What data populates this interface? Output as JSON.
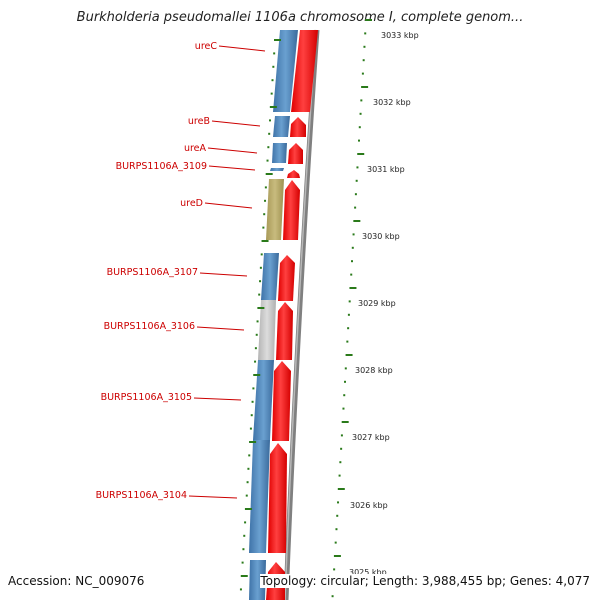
{
  "title": "Burkholderia pseudomallei 1106a chromosome I, complete genom...",
  "footer": {
    "accession": "Accession: NC_009076",
    "summary": "Topology: circular; Length: 3,988,455 bp; Genes: 4,077"
  },
  "colors": {
    "gene_blue": "#4a7fb4",
    "gene_olive": "#b5a86a",
    "gene_gray": "#c8c8c8",
    "cds_red": "#ff0000",
    "backbone_gray": "#808080",
    "tick_green": "#2a7a1a",
    "label_red": "#cc0000"
  },
  "genes": [
    {
      "label": "ureC"
    },
    {
      "label": "ureB"
    },
    {
      "label": "ureA"
    },
    {
      "label": "BURPS1106A_3109"
    },
    {
      "label": "ureD"
    },
    {
      "label": "BURPS1106A_3107"
    },
    {
      "label": "BURPS1106A_3106"
    },
    {
      "label": "BURPS1106A_3105"
    },
    {
      "label": "BURPS1106A_3104"
    }
  ],
  "scale": {
    "ticks": [
      "3033 kbp",
      "3032 kbp",
      "3031 kbp",
      "3030 kbp",
      "3029 kbp",
      "3028 kbp",
      "3027 kbp",
      "3026 kbp",
      "3025 kbp"
    ]
  }
}
